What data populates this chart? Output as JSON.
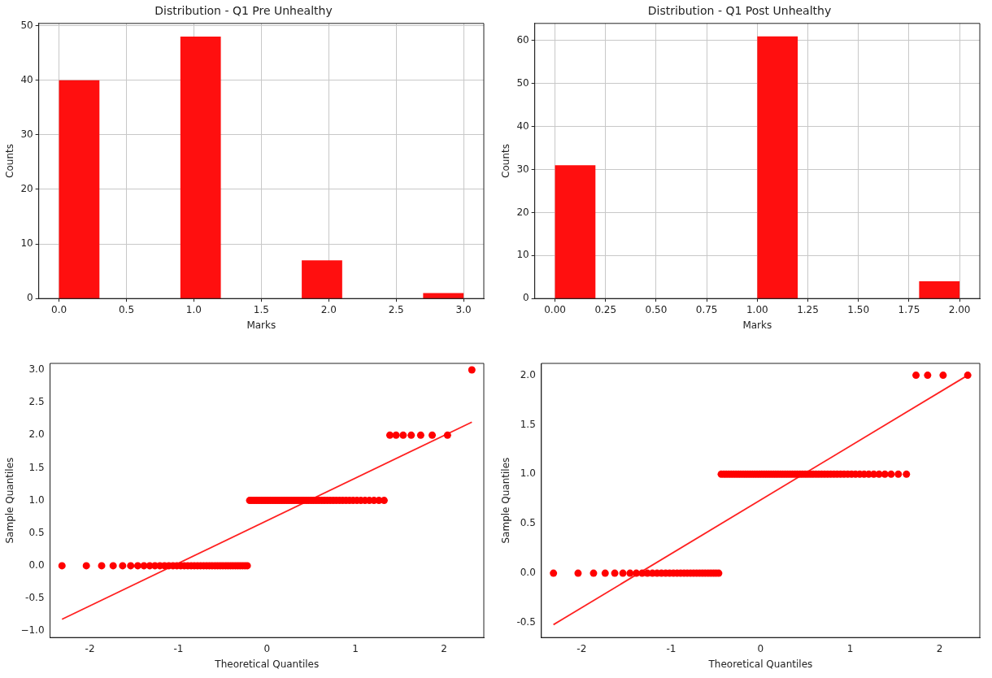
{
  "chart_data": [
    {
      "type": "histogram",
      "title": "Distribution - Q1 Pre Unhealthy",
      "xlabel": "Marks",
      "ylabel": "Counts",
      "color": "#ff0f0f",
      "grid": true,
      "bins": [
        0,
        0.3,
        0.6,
        0.9,
        1.2,
        1.5,
        1.8,
        2.1,
        2.4,
        2.7,
        3.0
      ],
      "values": [
        40,
        0,
        0,
        48,
        0,
        0,
        7,
        0,
        0,
        1
      ],
      "xlim": [
        -0.15,
        3.15
      ],
      "xticks": [
        {
          "value": 0,
          "label": "0.0"
        },
        0.5,
        {
          "value": 1,
          "label": "1.0"
        },
        1.5,
        {
          "value": 2,
          "label": "2.0"
        },
        2.5,
        {
          "value": 3,
          "label": "3.0"
        }
      ],
      "ylim": [
        0,
        50.4
      ],
      "yticks": [
        0,
        10,
        20,
        30,
        40,
        50
      ]
    },
    {
      "type": "histogram",
      "title": "Distribution - Q1 Post Unhealthy",
      "xlabel": "Marks",
      "ylabel": "Counts",
      "color": "#ff0f0f",
      "grid": true,
      "bins": [
        0,
        0.2,
        0.4,
        0.6,
        0.8,
        1.0,
        1.2,
        1.4,
        1.6,
        1.8,
        2.0
      ],
      "values": [
        31,
        0,
        0,
        0,
        0,
        61,
        0,
        0,
        0,
        4
      ],
      "xlim": [
        -0.1,
        2.1
      ],
      "xticks": [
        {
          "value": 0,
          "label": "0.00"
        },
        0.25,
        {
          "value": 0.5,
          "label": "0.50"
        },
        0.75,
        {
          "value": 1,
          "label": "1.00"
        },
        1.25,
        {
          "value": 1.5,
          "label": "1.50"
        },
        1.75,
        {
          "value": 2,
          "label": "2.00"
        }
      ],
      "ylim": [
        0,
        64
      ],
      "yticks": [
        0,
        10,
        20,
        30,
        40,
        50,
        60
      ]
    },
    {
      "type": "scatter",
      "xlabel": "Theoretical Quantiles",
      "ylabel": "Sample Quantiles",
      "xlim": [
        -2.45,
        2.45
      ],
      "xticks": [
        -2,
        -1,
        0,
        1,
        2
      ],
      "ylim": [
        -1.1,
        3.1
      ],
      "yticks": [
        {
          "value": -1,
          "label": "−1.0"
        },
        -0.5,
        {
          "value": 0,
          "label": "0.0"
        },
        0.5,
        {
          "value": 1,
          "label": "1.0"
        },
        1.5,
        {
          "value": 2,
          "label": "2.0"
        },
        2.5,
        {
          "value": 3,
          "label": "3.0"
        }
      ],
      "series": [
        {
          "type": "scatter",
          "marker": "circle",
          "color": "#ff0000",
          "x": [
            -2.315,
            -2.04,
            -1.867,
            -1.737,
            -1.63,
            -1.539,
            -1.459,
            -1.389,
            -1.324,
            -1.265,
            -1.209,
            -1.157,
            -1.108,
            -1.061,
            -1.017,
            -0.974,
            -0.933,
            -0.894,
            -0.856,
            -0.82,
            -0.784,
            -0.749,
            -0.715,
            -0.682,
            -0.65,
            -0.619,
            -0.587,
            -0.557,
            -0.527,
            -0.498,
            -0.468,
            -0.44,
            -0.411,
            -0.384,
            -0.356,
            -0.329,
            -0.302,
            -0.275,
            -0.248,
            -0.222,
            -0.195,
            -0.169,
            -0.143,
            -0.117,
            -0.091,
            -0.065,
            -0.039,
            -0.013,
            0.013,
            0.039,
            0.065,
            0.091,
            0.117,
            0.143,
            0.169,
            0.195,
            0.222,
            0.248,
            0.275,
            0.302,
            0.329,
            0.356,
            0.384,
            0.411,
            0.44,
            0.468,
            0.498,
            0.527,
            0.557,
            0.587,
            0.619,
            0.65,
            0.682,
            0.715,
            0.749,
            0.784,
            0.82,
            0.856,
            0.894,
            0.933,
            0.974,
            1.017,
            1.061,
            1.108,
            1.157,
            1.209,
            1.265,
            1.324,
            1.389,
            1.459,
            1.539,
            1.63,
            1.737,
            1.867,
            2.04,
            2.315
          ],
          "values": [
            0,
            0,
            0,
            0,
            0,
            0,
            0,
            0,
            0,
            0,
            0,
            0,
            0,
            0,
            0,
            0,
            0,
            0,
            0,
            0,
            0,
            0,
            0,
            0,
            0,
            0,
            0,
            0,
            0,
            0,
            0,
            0,
            0,
            0,
            0,
            0,
            0,
            0,
            0,
            0,
            1,
            1,
            1,
            1,
            1,
            1,
            1,
            1,
            1,
            1,
            1,
            1,
            1,
            1,
            1,
            1,
            1,
            1,
            1,
            1,
            1,
            1,
            1,
            1,
            1,
            1,
            1,
            1,
            1,
            1,
            1,
            1,
            1,
            1,
            1,
            1,
            1,
            1,
            1,
            1,
            1,
            1,
            1,
            1,
            1,
            1,
            1,
            1,
            2,
            2,
            2,
            2,
            2,
            2,
            2,
            3
          ]
        },
        {
          "type": "line",
          "marker": "none",
          "color": "#ff2020",
          "x": [
            -2.315,
            2.315
          ],
          "values": [
            -0.82,
            2.2
          ]
        }
      ]
    },
    {
      "type": "scatter",
      "xlabel": "Theoretical Quantiles",
      "ylabel": "Sample Quantiles",
      "xlim": [
        -2.45,
        2.45
      ],
      "xticks": [
        -2,
        -1,
        0,
        1,
        2
      ],
      "ylim": [
        -0.65,
        2.12
      ],
      "yticks": [
        -0.5,
        {
          "value": 0,
          "label": "0.0"
        },
        0.5,
        {
          "value": 1,
          "label": "1.0"
        },
        1.5,
        {
          "value": 2,
          "label": "2.0"
        }
      ],
      "series": [
        {
          "type": "scatter",
          "marker": "circle",
          "color": "#ff0000",
          "x": [
            -2.315,
            -2.04,
            -1.867,
            -1.737,
            -1.63,
            -1.539,
            -1.459,
            -1.389,
            -1.324,
            -1.265,
            -1.209,
            -1.157,
            -1.108,
            -1.061,
            -1.017,
            -0.974,
            -0.933,
            -0.894,
            -0.856,
            -0.82,
            -0.784,
            -0.749,
            -0.715,
            -0.682,
            -0.65,
            -0.619,
            -0.587,
            -0.557,
            -0.527,
            -0.498,
            -0.468,
            -0.44,
            -0.411,
            -0.384,
            -0.356,
            -0.329,
            -0.302,
            -0.275,
            -0.248,
            -0.222,
            -0.195,
            -0.169,
            -0.143,
            -0.117,
            -0.091,
            -0.065,
            -0.039,
            -0.013,
            0.013,
            0.039,
            0.065,
            0.091,
            0.117,
            0.143,
            0.169,
            0.195,
            0.222,
            0.248,
            0.275,
            0.302,
            0.329,
            0.356,
            0.384,
            0.411,
            0.44,
            0.468,
            0.498,
            0.527,
            0.557,
            0.587,
            0.619,
            0.65,
            0.682,
            0.715,
            0.749,
            0.784,
            0.82,
            0.856,
            0.894,
            0.933,
            0.974,
            1.017,
            1.061,
            1.108,
            1.157,
            1.209,
            1.265,
            1.324,
            1.389,
            1.459,
            1.539,
            1.63,
            1.737,
            1.867,
            2.04,
            2.315
          ],
          "values": [
            0,
            0,
            0,
            0,
            0,
            0,
            0,
            0,
            0,
            0,
            0,
            0,
            0,
            0,
            0,
            0,
            0,
            0,
            0,
            0,
            0,
            0,
            0,
            0,
            0,
            0,
            0,
            0,
            0,
            0,
            0,
            1,
            1,
            1,
            1,
            1,
            1,
            1,
            1,
            1,
            1,
            1,
            1,
            1,
            1,
            1,
            1,
            1,
            1,
            1,
            1,
            1,
            1,
            1,
            1,
            1,
            1,
            1,
            1,
            1,
            1,
            1,
            1,
            1,
            1,
            1,
            1,
            1,
            1,
            1,
            1,
            1,
            1,
            1,
            1,
            1,
            1,
            1,
            1,
            1,
            1,
            1,
            1,
            1,
            1,
            1,
            1,
            1,
            1,
            1,
            1,
            1,
            2,
            2,
            2,
            2
          ]
        },
        {
          "type": "line",
          "marker": "none",
          "color": "#ff2020",
          "x": [
            -2.315,
            2.315
          ],
          "values": [
            -0.52,
            2.0
          ]
        }
      ]
    }
  ]
}
